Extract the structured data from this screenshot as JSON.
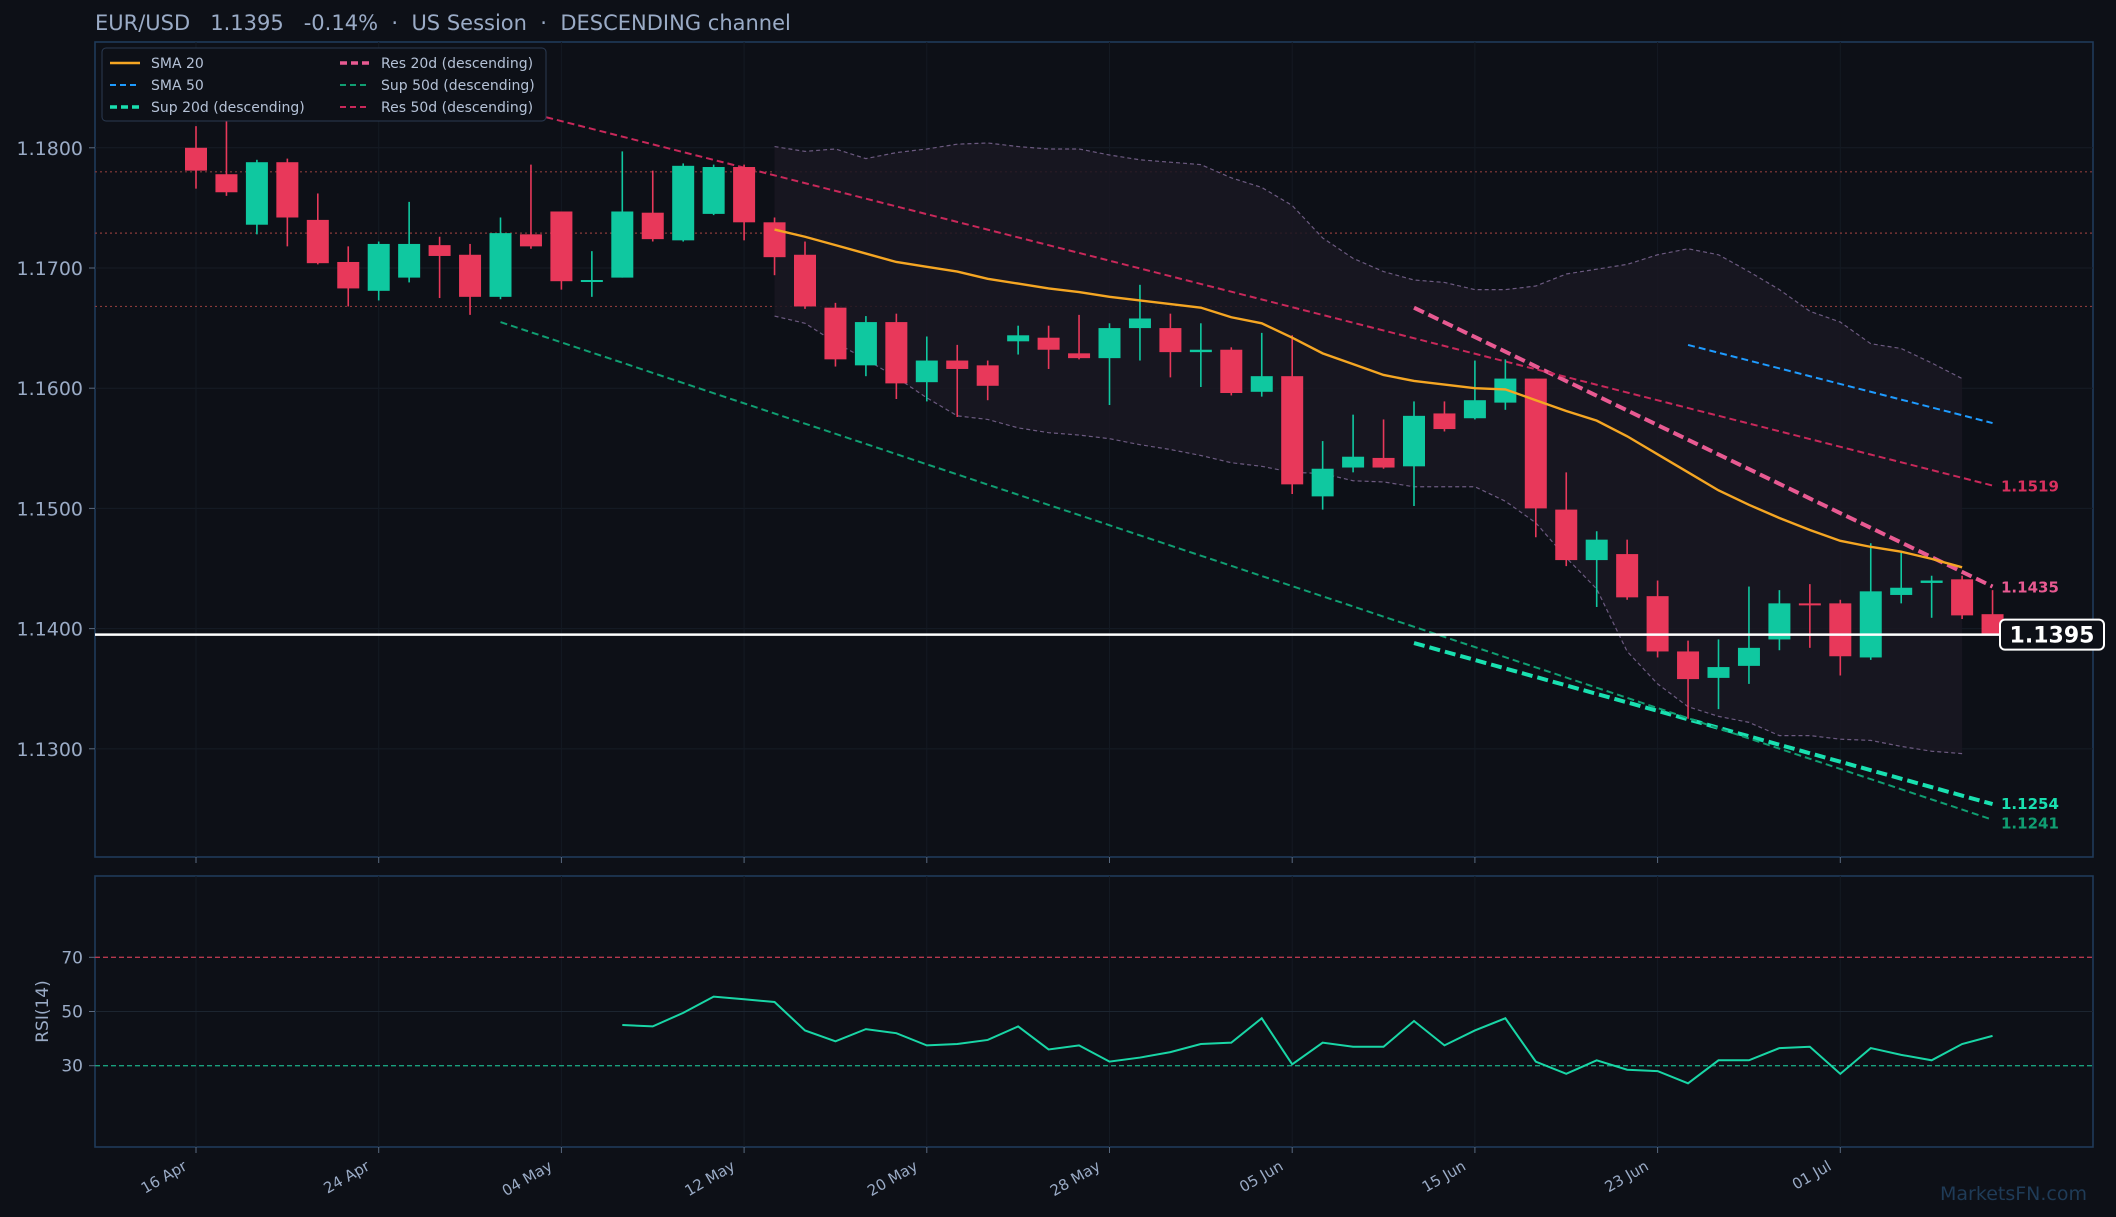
{
  "header": {
    "pair": "EUR/USD",
    "price": "1.1395",
    "change": "-0.14%",
    "sep": "·",
    "session": "US Session",
    "channel": "DESCENDING channel"
  },
  "watermark": "MarketsFN.com",
  "colors": {
    "bg": "#0d1017",
    "frame": "#1f3a5a",
    "up": "#0fc8a0",
    "down": "#e8385a",
    "sma20": "#f5a623",
    "sma50": "#1e9bff",
    "res20": "#e85a92",
    "res50": "#c8285a",
    "sup20": "#19e0b0",
    "sup50": "#109e72",
    "band": "#6c5a80",
    "price": "#ffffff",
    "rsi": "#19d6a6",
    "rsi_hi": "#b7384e",
    "rsi_lo": "#19a07e",
    "hlevel": "#8a3a3a",
    "text": "#9aabc6"
  },
  "chart_data": [
    {
      "type": "candlestick",
      "title": "EUR/USD 1.1395 -0.14% · US Session · DESCENDING channel",
      "ylim": [
        1.121,
        1.1888
      ],
      "y_ticks": [
        "1.1300",
        "1.1400",
        "1.1500",
        "1.1600",
        "1.1700",
        "1.1800"
      ],
      "x_ticks": [
        {
          "label": "16 Apr",
          "i": 0
        },
        {
          "label": "24 Apr",
          "i": 6
        },
        {
          "label": "04 May",
          "i": 12
        },
        {
          "label": "12 May",
          "i": 18
        },
        {
          "label": "20 May",
          "i": 24
        },
        {
          "label": "28 May",
          "i": 30
        },
        {
          "label": "05 Jun",
          "i": 36
        },
        {
          "label": "15 Jun",
          "i": 42
        },
        {
          "label": "23 Jun",
          "i": 48
        },
        {
          "label": "01 Jul",
          "i": 54
        }
      ],
      "candles": [
        {
          "o": 1.18,
          "h": 1.1818,
          "l": 1.1766,
          "c": 1.1781
        },
        {
          "o": 1.1778,
          "h": 1.1849,
          "l": 1.176,
          "c": 1.1763
        },
        {
          "o": 1.1736,
          "h": 1.179,
          "l": 1.1728,
          "c": 1.1788
        },
        {
          "o": 1.1788,
          "h": 1.1791,
          "l": 1.1718,
          "c": 1.1742
        },
        {
          "o": 1.174,
          "h": 1.1762,
          "l": 1.1703,
          "c": 1.1704
        },
        {
          "o": 1.1705,
          "h": 1.1718,
          "l": 1.1668,
          "c": 1.1683
        },
        {
          "o": 1.1681,
          "h": 1.1722,
          "l": 1.1673,
          "c": 1.172
        },
        {
          "o": 1.1692,
          "h": 1.1755,
          "l": 1.1688,
          "c": 1.172
        },
        {
          "o": 1.1719,
          "h": 1.1726,
          "l": 1.1675,
          "c": 1.171
        },
        {
          "o": 1.1711,
          "h": 1.172,
          "l": 1.1661,
          "c": 1.1676
        },
        {
          "o": 1.1676,
          "h": 1.1742,
          "l": 1.1674,
          "c": 1.1729
        },
        {
          "o": 1.1728,
          "h": 1.1786,
          "l": 1.1716,
          "c": 1.1718
        },
        {
          "o": 1.1747,
          "h": 1.1747,
          "l": 1.1682,
          "c": 1.1689
        },
        {
          "o": 1.169,
          "h": 1.1714,
          "l": 1.1676,
          "c": 1.169
        },
        {
          "o": 1.1692,
          "h": 1.1797,
          "l": 1.1692,
          "c": 1.1747
        },
        {
          "o": 1.1746,
          "h": 1.1781,
          "l": 1.1722,
          "c": 1.1724
        },
        {
          "o": 1.1723,
          "h": 1.1787,
          "l": 1.1722,
          "c": 1.1785
        },
        {
          "o": 1.1745,
          "h": 1.1786,
          "l": 1.1744,
          "c": 1.1784
        },
        {
          "o": 1.1784,
          "h": 1.1786,
          "l": 1.1723,
          "c": 1.1738
        },
        {
          "o": 1.1738,
          "h": 1.1742,
          "l": 1.1694,
          "c": 1.1709
        },
        {
          "o": 1.1711,
          "h": 1.1722,
          "l": 1.1666,
          "c": 1.1668
        },
        {
          "o": 1.1667,
          "h": 1.1671,
          "l": 1.1618,
          "c": 1.1624
        },
        {
          "o": 1.1619,
          "h": 1.166,
          "l": 1.161,
          "c": 1.1655
        },
        {
          "o": 1.1655,
          "h": 1.1662,
          "l": 1.1591,
          "c": 1.1604
        },
        {
          "o": 1.1605,
          "h": 1.1643,
          "l": 1.1589,
          "c": 1.1623
        },
        {
          "o": 1.1623,
          "h": 1.1636,
          "l": 1.1576,
          "c": 1.1616
        },
        {
          "o": 1.1619,
          "h": 1.1623,
          "l": 1.159,
          "c": 1.1602
        },
        {
          "o": 1.1639,
          "h": 1.1652,
          "l": 1.1628,
          "c": 1.1644
        },
        {
          "o": 1.1642,
          "h": 1.1652,
          "l": 1.1616,
          "c": 1.1632
        },
        {
          "o": 1.1629,
          "h": 1.1661,
          "l": 1.1624,
          "c": 1.1625
        },
        {
          "o": 1.1625,
          "h": 1.1654,
          "l": 1.1586,
          "c": 1.165
        },
        {
          "o": 1.165,
          "h": 1.1686,
          "l": 1.1623,
          "c": 1.1658
        },
        {
          "o": 1.165,
          "h": 1.1662,
          "l": 1.1609,
          "c": 1.163
        },
        {
          "o": 1.163,
          "h": 1.1654,
          "l": 1.1601,
          "c": 1.1632
        },
        {
          "o": 1.1632,
          "h": 1.1634,
          "l": 1.1594,
          "c": 1.1596
        },
        {
          "o": 1.1597,
          "h": 1.1646,
          "l": 1.1593,
          "c": 1.161
        },
        {
          "o": 1.161,
          "h": 1.1644,
          "l": 1.1512,
          "c": 1.152
        },
        {
          "o": 1.151,
          "h": 1.1556,
          "l": 1.1499,
          "c": 1.1533
        },
        {
          "o": 1.1534,
          "h": 1.1578,
          "l": 1.153,
          "c": 1.1543
        },
        {
          "o": 1.1542,
          "h": 1.1574,
          "l": 1.1533,
          "c": 1.1534
        },
        {
          "o": 1.1535,
          "h": 1.1589,
          "l": 1.1502,
          "c": 1.1577
        },
        {
          "o": 1.1579,
          "h": 1.1589,
          "l": 1.1564,
          "c": 1.1566
        },
        {
          "o": 1.1575,
          "h": 1.1623,
          "l": 1.1574,
          "c": 1.159
        },
        {
          "o": 1.1588,
          "h": 1.1624,
          "l": 1.1582,
          "c": 1.1608
        },
        {
          "o": 1.1608,
          "h": 1.1608,
          "l": 1.1476,
          "c": 1.15
        },
        {
          "o": 1.1499,
          "h": 1.153,
          "l": 1.1452,
          "c": 1.1457
        },
        {
          "o": 1.1457,
          "h": 1.1481,
          "l": 1.1418,
          "c": 1.1474
        },
        {
          "o": 1.1462,
          "h": 1.1474,
          "l": 1.1424,
          "c": 1.1426
        },
        {
          "o": 1.1427,
          "h": 1.144,
          "l": 1.1376,
          "c": 1.1381
        },
        {
          "o": 1.1381,
          "h": 1.139,
          "l": 1.1325,
          "c": 1.1358
        },
        {
          "o": 1.1359,
          "h": 1.1391,
          "l": 1.1333,
          "c": 1.1368
        },
        {
          "o": 1.1369,
          "h": 1.1435,
          "l": 1.1354,
          "c": 1.1384
        },
        {
          "o": 1.1391,
          "h": 1.1432,
          "l": 1.1382,
          "c": 1.1421
        },
        {
          "o": 1.1421,
          "h": 1.1437,
          "l": 1.1384,
          "c": 1.142
        },
        {
          "o": 1.1421,
          "h": 1.1424,
          "l": 1.1361,
          "c": 1.1377
        },
        {
          "o": 1.1376,
          "h": 1.1471,
          "l": 1.1374,
          "c": 1.1431
        },
        {
          "o": 1.1428,
          "h": 1.1464,
          "l": 1.1421,
          "c": 1.1434
        },
        {
          "o": 1.1438,
          "h": 1.1444,
          "l": 1.1409,
          "c": 1.144
        },
        {
          "o": 1.1441,
          "h": 1.1444,
          "l": 1.1408,
          "c": 1.1411
        },
        {
          "o": 1.1412,
          "h": 1.1432,
          "l": 1.1395,
          "c": 1.1395
        }
      ],
      "series": [
        {
          "name": "SMA 20",
          "style": "solid",
          "start": 19,
          "values": [
            1.1732,
            1.1726,
            1.1719,
            1.1712,
            1.1705,
            1.1701,
            1.1697,
            1.1691,
            1.1687,
            1.1683,
            1.168,
            1.1676,
            1.1673,
            1.167,
            1.1667,
            1.1659,
            1.1654,
            1.1642,
            1.1629,
            1.162,
            1.1611,
            1.1606,
            1.1603,
            1.16,
            1.1599,
            1.159,
            1.1581,
            1.1573,
            1.156,
            1.1545,
            1.153,
            1.1515,
            1.1503,
            1.1492,
            1.1482,
            1.1473,
            1.1468,
            1.1464,
            1.1458,
            1.1451
          ]
        },
        {
          "name": "SMA 50",
          "style": "dashed",
          "start": 49,
          "values": [
            1.1636,
            1.1571
          ]
        },
        {
          "name": "Sup 20d (descending)",
          "style": "dashed-thick",
          "start": 40,
          "values": [
            1.1388,
            1.1254
          ]
        },
        {
          "name": "Res 20d (descending)",
          "style": "dashed-thick",
          "start": 40,
          "values": [
            1.1667,
            1.1435
          ]
        },
        {
          "name": "Sup 50d (descending)",
          "style": "dashed",
          "start": 10,
          "values": [
            1.1655,
            1.1241
          ]
        },
        {
          "name": "Res 50d (descending)",
          "style": "dashed",
          "start": 8,
          "values": [
            1.1848,
            1.1519
          ]
        }
      ],
      "bollinger": {
        "start": 19,
        "upper": [
          1.1801,
          1.1797,
          1.1799,
          1.1791,
          1.1796,
          1.1799,
          1.1803,
          1.1804,
          1.1801,
          1.1799,
          1.1799,
          1.1794,
          1.179,
          1.1788,
          1.1786,
          1.1775,
          1.1767,
          1.1752,
          1.1725,
          1.1708,
          1.1697,
          1.169,
          1.1688,
          1.1682,
          1.1682,
          1.1685,
          1.1695,
          1.1699,
          1.1703,
          1.1711,
          1.1716,
          1.1711,
          1.1697,
          1.1682,
          1.1664,
          1.1655,
          1.1637,
          1.1633,
          1.1621,
          1.1608
        ],
        "lower": [
          1.166,
          1.1654,
          1.1638,
          1.1624,
          1.1609,
          1.1592,
          1.1577,
          1.1574,
          1.1567,
          1.1563,
          1.1561,
          1.1558,
          1.1553,
          1.1549,
          1.1544,
          1.1538,
          1.1535,
          1.153,
          1.1529,
          1.1523,
          1.1522,
          1.1518,
          1.1518,
          1.1518,
          1.1506,
          1.1488,
          1.1459,
          1.1433,
          1.1381,
          1.1354,
          1.1335,
          1.1327,
          1.1322,
          1.1311,
          1.1311,
          1.1308,
          1.1307,
          1.1302,
          1.1298,
          1.1296
        ]
      },
      "h_levels": [
        1.178,
        1.1729,
        1.1668
      ],
      "current_price": 1.1395,
      "current_label": "1.1395",
      "end_labels": [
        {
          "text": "1.1519",
          "value": 1.1519,
          "color": "#d8305e"
        },
        {
          "text": "1.1435",
          "value": 1.1435,
          "color": "#e85a92"
        },
        {
          "text": "1.1254",
          "value": 1.1254,
          "color": "#19e0b0"
        },
        {
          "text": "1.1241",
          "value": 1.1241,
          "color": "#109e72"
        }
      ],
      "legend": [
        {
          "name": "SMA 20",
          "color": "#f5a623",
          "style": "solid"
        },
        {
          "name": "Res 20d (descending)",
          "color": "#e85a92",
          "style": "dashed-thick"
        },
        {
          "name": "SMA 50",
          "color": "#1e9bff",
          "style": "dashed"
        },
        {
          "name": "Sup 50d (descending)",
          "color": "#109e72",
          "style": "dashed"
        },
        {
          "name": "Sup 20d (descending)",
          "color": "#19e0b0",
          "style": "dashed-thick"
        },
        {
          "name": "Res 50d (descending)",
          "color": "#c8285a",
          "style": "dashed"
        }
      ],
      "legend_position": "top-left",
      "grid": true
    },
    {
      "type": "line",
      "ylabel": "RSI(14)",
      "ylim": [
        0,
        100
      ],
      "y_ticks": [
        30,
        50,
        70
      ],
      "overbought": 70,
      "oversold": 30,
      "start": 14,
      "values": [
        45,
        44.5,
        49.5,
        55.5,
        54.5,
        53.5,
        43,
        39,
        43.5,
        42,
        37.5,
        38,
        39.5,
        44.5,
        36,
        37.5,
        31.5,
        33,
        35,
        38,
        38.5,
        47.5,
        30.5,
        38.5,
        37,
        37,
        46.5,
        37.5,
        43,
        47.5,
        31.5,
        27,
        32,
        28.5,
        28,
        23.5,
        32,
        32,
        36.5,
        37,
        27,
        36.5,
        34,
        32,
        38,
        41
      ]
    }
  ]
}
